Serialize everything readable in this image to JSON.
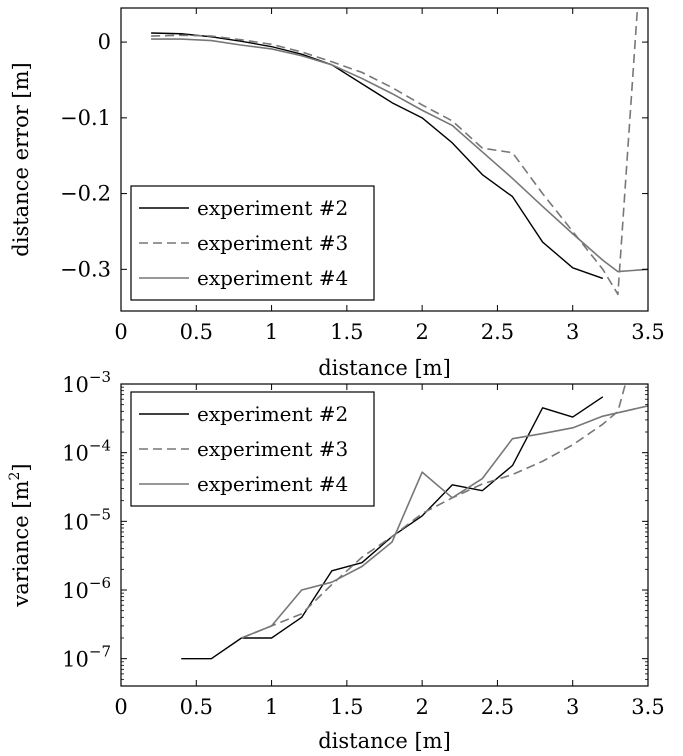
{
  "chart_data": [
    {
      "type": "line",
      "xlabel": "distance [m]",
      "ylabel": "distance error [m]",
      "xlim": [
        0,
        3.5
      ],
      "ylim": [
        -0.355,
        0.045
      ],
      "xticks": [
        0,
        0.5,
        1,
        1.5,
        2,
        2.5,
        3,
        3.5
      ],
      "xtick_labels": [
        "0",
        "0.5",
        "1",
        "1.5",
        "2",
        "2.5",
        "3",
        "3.5"
      ],
      "yticks": [
        0,
        -0.1,
        -0.2,
        -0.3
      ],
      "ytick_labels": [
        "0",
        "−0.1",
        "−0.2",
        "−0.3"
      ],
      "grid": false,
      "legend_position": "bottom-left",
      "series": [
        {
          "name": "experiment #2",
          "color": "#000000",
          "dash": "solid",
          "x": [
            0.2,
            0.4,
            0.6,
            0.8,
            1.0,
            1.2,
            1.4,
            1.6,
            1.8,
            2.0,
            2.2,
            2.4,
            2.6,
            2.8,
            3.0,
            3.2
          ],
          "y": [
            0.012,
            0.011,
            0.007,
            0.001,
            -0.006,
            -0.016,
            -0.03,
            -0.055,
            -0.08,
            -0.1,
            -0.133,
            -0.175,
            -0.204,
            -0.264,
            -0.298,
            -0.312
          ]
        },
        {
          "name": "experiment #3",
          "color": "#777777",
          "dash": "dashed",
          "x": [
            0.2,
            0.4,
            0.6,
            0.8,
            1.0,
            1.2,
            1.4,
            1.6,
            1.8,
            2.0,
            2.2,
            2.4,
            2.6,
            2.8,
            3.0,
            3.2,
            3.3,
            3.43
          ],
          "y": [
            0.008,
            0.009,
            0.008,
            0.003,
            -0.003,
            -0.013,
            -0.026,
            -0.04,
            -0.06,
            -0.083,
            -0.104,
            -0.14,
            -0.146,
            -0.2,
            -0.25,
            -0.3,
            -0.333,
            0.045
          ]
        },
        {
          "name": "experiment #4",
          "color": "#777777",
          "dash": "solid",
          "x": [
            0.2,
            0.4,
            0.6,
            0.8,
            1.0,
            1.2,
            1.4,
            1.6,
            1.8,
            2.0,
            2.2,
            2.4,
            2.6,
            2.8,
            3.0,
            3.2,
            3.3,
            3.5
          ],
          "y": [
            0.004,
            0.004,
            0.002,
            -0.004,
            -0.009,
            -0.018,
            -0.03,
            -0.048,
            -0.068,
            -0.09,
            -0.11,
            -0.145,
            -0.18,
            -0.217,
            -0.253,
            -0.288,
            -0.303,
            -0.3
          ]
        }
      ]
    },
    {
      "type": "line",
      "xlabel": "distance [m]",
      "ylabel": "variance [m²]",
      "ylabel_base": "variance [m",
      "ylabel_sup": "2",
      "ylabel_end": "]",
      "xlim": [
        0,
        3.5
      ],
      "ylim": [
        4e-08,
        0.001
      ],
      "yscale": "log",
      "xticks": [
        0,
        0.5,
        1,
        1.5,
        2,
        2.5,
        3,
        3.5
      ],
      "xtick_labels": [
        "0",
        "0.5",
        "1",
        "1.5",
        "2",
        "2.5",
        "3",
        "3.5"
      ],
      "yticks": [
        1e-07,
        1e-06,
        1e-05,
        0.0001,
        0.001
      ],
      "ytick_exponents": [
        "−7",
        "−6",
        "−5",
        "−4",
        "−3"
      ],
      "ytick_base": "10",
      "grid": false,
      "legend_position": "top-left",
      "series": [
        {
          "name": "experiment #2",
          "color": "#000000",
          "dash": "solid",
          "x": [
            0.4,
            0.6,
            0.8,
            1.0,
            1.2,
            1.4,
            1.6,
            1.8,
            2.0,
            2.2,
            2.4,
            2.6,
            2.8,
            3.0,
            3.2
          ],
          "y": [
            1e-07,
            1e-07,
            2e-07,
            2e-07,
            4e-07,
            1.9e-06,
            2.5e-06,
            6e-06,
            1.2e-05,
            3.4e-05,
            2.8e-05,
            6.5e-05,
            0.00045,
            0.00033,
            0.00065
          ]
        },
        {
          "name": "experiment #3",
          "color": "#777777",
          "dash": "dashed",
          "x": [
            0.8,
            1.0,
            1.2,
            1.4,
            1.6,
            1.8,
            2.0,
            2.2,
            2.4,
            2.6,
            2.8,
            3.0,
            3.2,
            3.3,
            3.35
          ],
          "y": [
            2e-07,
            3e-07,
            4.5e-07,
            1.2e-06,
            3e-06,
            6e-06,
            1.3e-05,
            2.2e-05,
            3.5e-05,
            4.8e-05,
            7.5e-05,
            0.00013,
            0.00026,
            0.0004,
            0.001
          ]
        },
        {
          "name": "experiment #4",
          "color": "#777777",
          "dash": "solid",
          "x": [
            0.8,
            1.0,
            1.2,
            1.4,
            1.6,
            1.8,
            2.0,
            2.2,
            2.4,
            2.6,
            2.8,
            3.0,
            3.2,
            3.5
          ],
          "y": [
            2e-07,
            3e-07,
            1e-06,
            1.3e-06,
            2.2e-06,
            5e-06,
            5.2e-05,
            2.2e-05,
            4.2e-05,
            0.00016,
            0.00019,
            0.00023,
            0.00034,
            0.00048
          ]
        }
      ]
    }
  ]
}
